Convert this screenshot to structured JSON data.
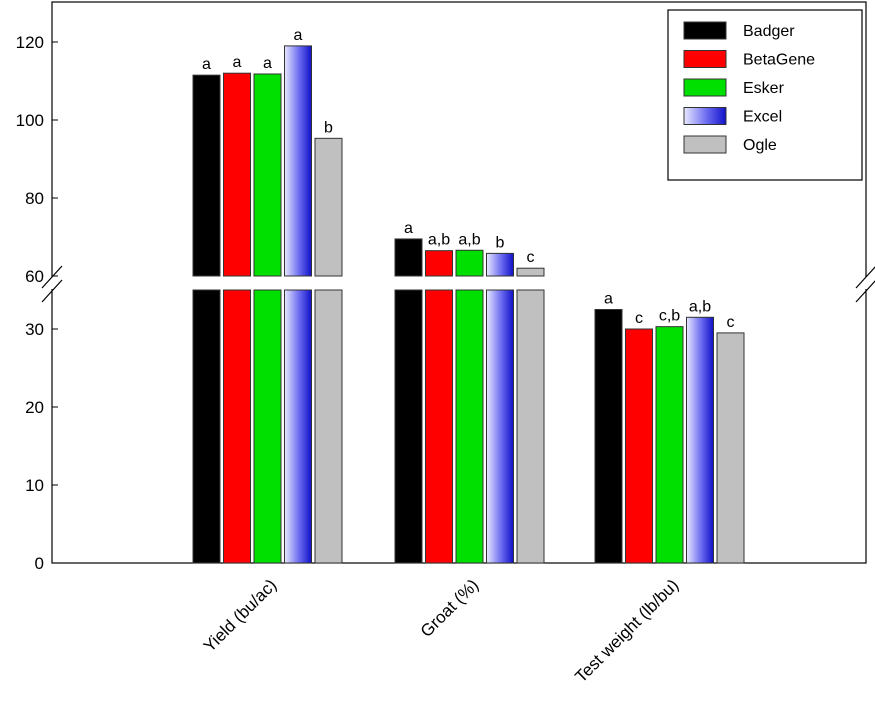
{
  "chart_data": {
    "type": "bar",
    "categories": [
      "Yield (bu/ac)",
      "Groat (%)",
      "Test weight (lb/bu)"
    ],
    "series": [
      {
        "name": "Badger",
        "color": "#000000",
        "values": [
          111.5,
          69.5,
          32.5
        ],
        "letters": [
          "a",
          "a",
          "a"
        ]
      },
      {
        "name": "BetaGene",
        "color": "#ff0000",
        "values": [
          112.0,
          66.5,
          30.0
        ],
        "letters": [
          "a",
          "a,b",
          "c"
        ]
      },
      {
        "name": "Esker",
        "color": "#00e000",
        "values": [
          111.8,
          66.6,
          30.3
        ],
        "letters": [
          "a",
          "a,b",
          "c,b"
        ]
      },
      {
        "name": "Excel",
        "color": "#2222cc",
        "values": [
          119.0,
          65.8,
          31.5
        ],
        "letters": [
          "a",
          "b",
          "a,b"
        ]
      },
      {
        "name": "Ogle",
        "color": "#c0c0c0",
        "values": [
          95.3,
          62.0,
          29.5
        ],
        "letters": [
          "b",
          "c",
          "c"
        ]
      }
    ],
    "axis_break": {
      "lower_range": [
        0,
        35
      ],
      "upper_range": [
        60,
        130
      ]
    },
    "yticks_lower": [
      "0",
      "10",
      "20",
      "30"
    ],
    "yticks_upper": [
      "60",
      "80",
      "100",
      "120"
    ],
    "legend_position": "top-right",
    "grid": false
  }
}
